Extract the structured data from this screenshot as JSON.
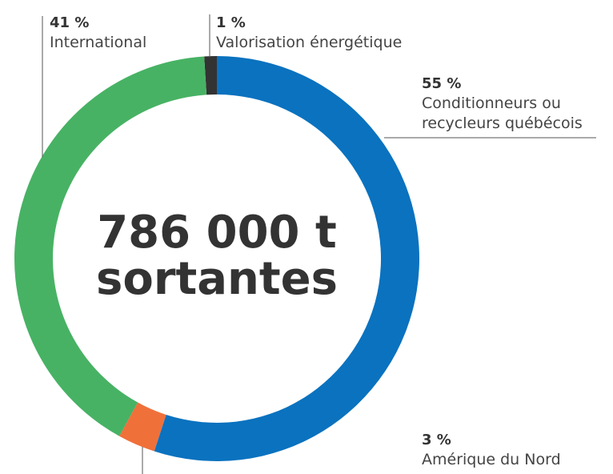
{
  "chart_data": {
    "type": "pie",
    "donut": true,
    "categories": [
      "Conditionneurs ou recycleurs québécois",
      "Amérique du Nord",
      "International",
      "Valorisation énergétique"
    ],
    "values": [
      55,
      3,
      41,
      1
    ],
    "value_labels": [
      "55 %",
      "3 %",
      "41 %",
      "1 %"
    ],
    "colors": [
      "#0a72bf",
      "#f0703a",
      "#47b264",
      "#333333"
    ],
    "center_text": [
      "786 000 t",
      "sortantes"
    ]
  }
}
